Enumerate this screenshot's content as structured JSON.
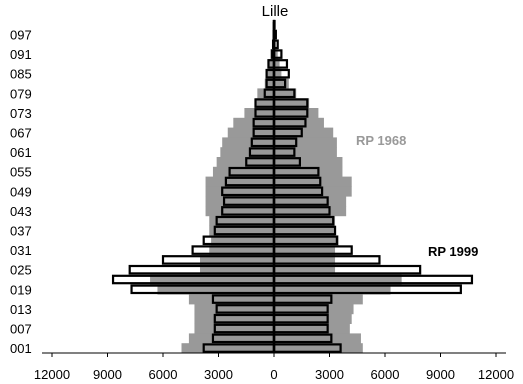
{
  "chart_data": {
    "type": "bar",
    "orientation": "population-pyramid",
    "title": "Lille",
    "xlim": [
      -12000,
      12000
    ],
    "x_ticks": [
      -12000,
      -9000,
      -6000,
      -3000,
      0,
      3000,
      6000,
      9000,
      12000
    ],
    "x_tick_labels": [
      "12000",
      "9000",
      "6000",
      "3000",
      "0",
      "3000",
      "6000",
      "9000",
      "12000"
    ],
    "age_groups": [
      "001",
      "004",
      "007",
      "010",
      "013",
      "016",
      "019",
      "022",
      "025",
      "028",
      "031",
      "034",
      "037",
      "040",
      "043",
      "046",
      "049",
      "052",
      "055",
      "058",
      "061",
      "064",
      "067",
      "070",
      "073",
      "076",
      "079",
      "082",
      "085",
      "088",
      "091",
      "094",
      "097",
      "100"
    ],
    "y_tick_labels": [
      "001",
      "007",
      "013",
      "019",
      "025",
      "031",
      "037",
      "043",
      "049",
      "055",
      "061",
      "067",
      "073",
      "079",
      "085",
      "091",
      "097"
    ],
    "series": [
      {
        "name": "RP 1968",
        "color": "#999999",
        "style": "filled-silhouette",
        "left": [
          5000,
          4600,
          4300,
          4300,
          4300,
          4600,
          6300,
          6700,
          4000,
          4000,
          3500,
          3400,
          3500,
          3500,
          3700,
          3700,
          3700,
          3700,
          3300,
          3100,
          2900,
          2800,
          2500,
          2200,
          1600,
          1000,
          900,
          500,
          400,
          300,
          200,
          100,
          50,
          20
        ],
        "right": [
          4800,
          4700,
          4100,
          4200,
          4300,
          4800,
          6300,
          6900,
          3300,
          3300,
          3300,
          3500,
          3300,
          3300,
          3900,
          3900,
          4200,
          4200,
          3700,
          3700,
          3400,
          3400,
          3200,
          2700,
          2400,
          1900,
          1200,
          800,
          400,
          300,
          200,
          100,
          50,
          20
        ]
      },
      {
        "name": "RP 1999",
        "color": "#000000",
        "style": "outlined-bars",
        "left": [
          3800,
          3300,
          3200,
          3200,
          3100,
          3300,
          7700,
          8700,
          7800,
          6000,
          4400,
          3800,
          3200,
          3100,
          2800,
          2700,
          2800,
          2600,
          2400,
          1500,
          1300,
          1200,
          1100,
          1100,
          1000,
          1000,
          500,
          400,
          400,
          300,
          100,
          50,
          20,
          10
        ],
        "right": [
          3600,
          3100,
          2900,
          2900,
          2900,
          3100,
          10100,
          10700,
          7900,
          5700,
          4200,
          3400,
          3300,
          3200,
          3000,
          2900,
          2600,
          2500,
          2400,
          1400,
          1100,
          1200,
          1500,
          1700,
          1800,
          1800,
          1100,
          600,
          800,
          700,
          400,
          200,
          100,
          30
        ]
      }
    ],
    "series_labels": [
      {
        "text": "RP 1968",
        "color": "#999999"
      },
      {
        "text": "RP 1999",
        "color": "#000000"
      }
    ]
  }
}
